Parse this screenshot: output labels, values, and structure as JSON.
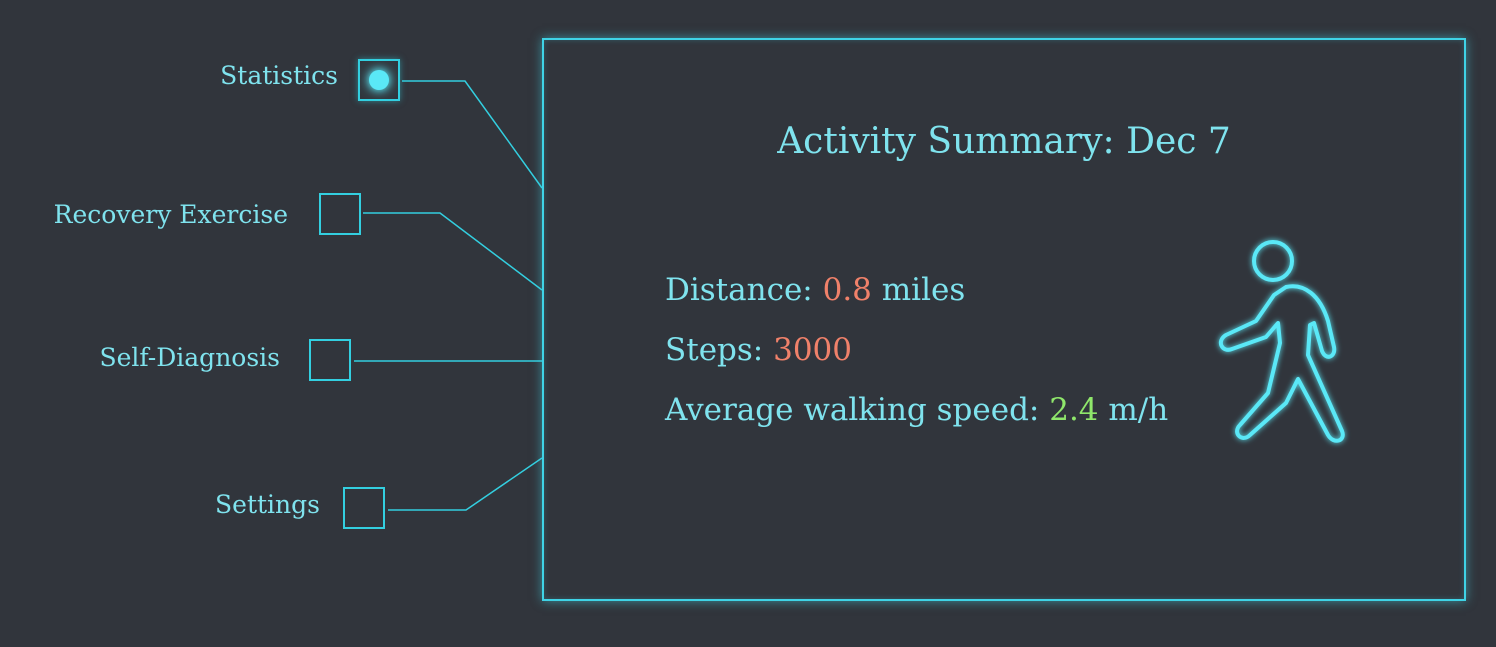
{
  "menu": {
    "items": [
      {
        "label": "Statistics",
        "selected": true
      },
      {
        "label": "Recovery Exercise",
        "selected": false
      },
      {
        "label": "Self-Diagnosis",
        "selected": false
      },
      {
        "label": "Settings",
        "selected": false
      }
    ]
  },
  "summary": {
    "title": "Activity Summary: Dec 7",
    "distance": {
      "label": "Distance: ",
      "value": "0.8",
      "unit": " miles"
    },
    "steps": {
      "label": "Steps: ",
      "value": "3000"
    },
    "speed": {
      "label": "Average walking speed: ",
      "value": "2.4",
      "unit": " m/h"
    },
    "icon": "walking-person-icon"
  },
  "colors": {
    "background": "#31353c",
    "accent": "#33cfe0",
    "text": "#7fe3ee",
    "value_orange": "#f0816a",
    "value_green": "#8fe76b"
  }
}
